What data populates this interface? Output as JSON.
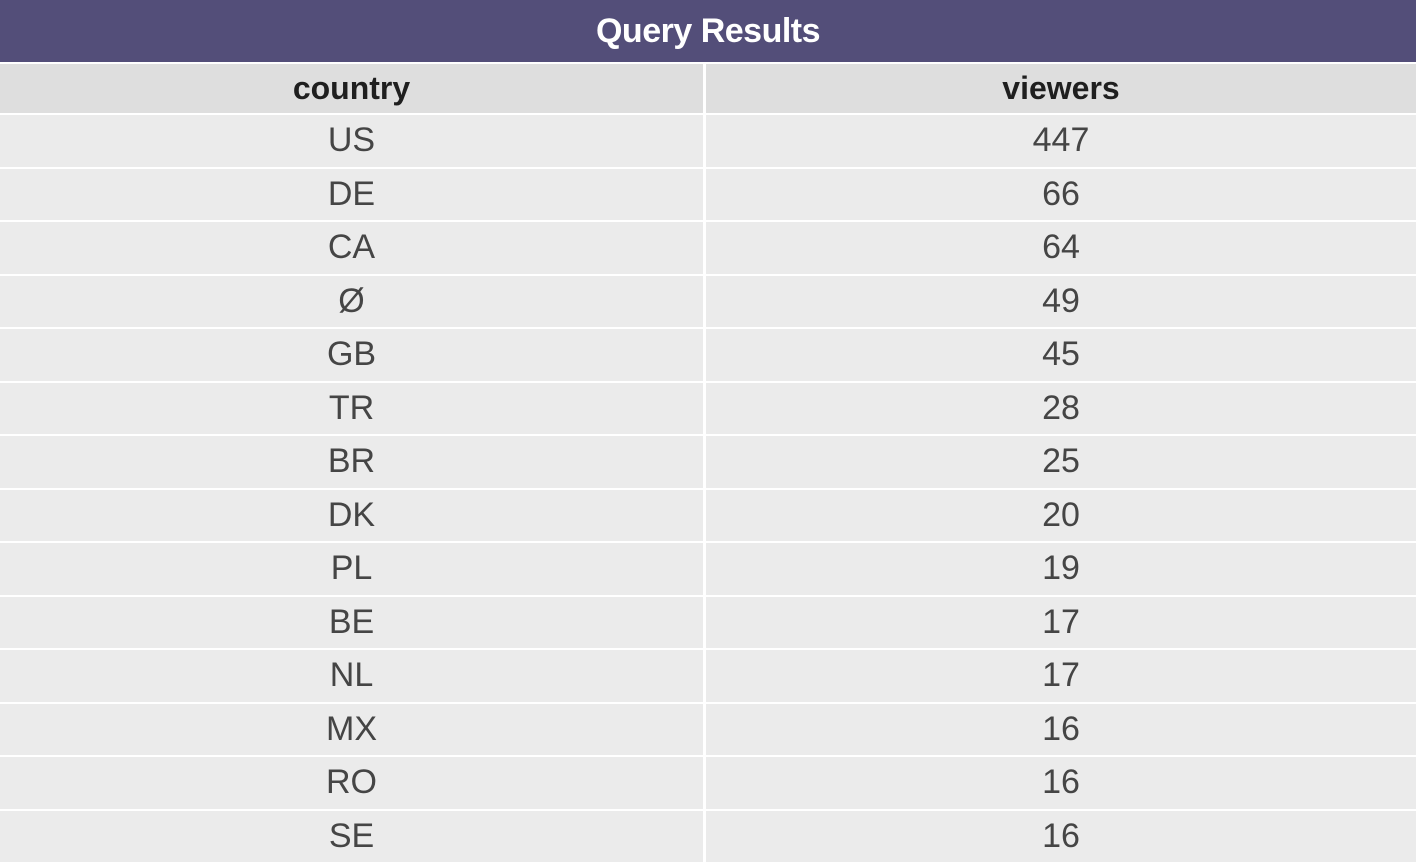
{
  "title": "Query Results",
  "columns": [
    "country",
    "viewers"
  ],
  "rows": [
    [
      "US",
      "447"
    ],
    [
      "DE",
      "66"
    ],
    [
      "CA",
      "64"
    ],
    [
      "Ø",
      "49"
    ],
    [
      "GB",
      "45"
    ],
    [
      "TR",
      "28"
    ],
    [
      "BR",
      "25"
    ],
    [
      "DK",
      "20"
    ],
    [
      "PL",
      "19"
    ],
    [
      "BE",
      "17"
    ],
    [
      "NL",
      "17"
    ],
    [
      "MX",
      "16"
    ],
    [
      "RO",
      "16"
    ],
    [
      "SE",
      "16"
    ]
  ],
  "colors": {
    "title_bar": "#534e79",
    "title_text": "#ffffff",
    "header_bg": "#dedede",
    "row_bg": "#ebebeb",
    "cell_text": "#454545"
  }
}
